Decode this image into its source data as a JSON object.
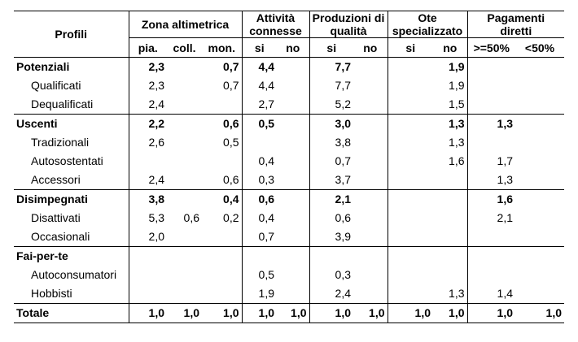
{
  "headers": {
    "profili": "Profili",
    "zona": "Zona altimetrica",
    "attivita": "Attività connesse",
    "produzioni": "Produzioni di qualità",
    "ote": "Ote specializzato",
    "pagamenti": "Pagamenti diretti",
    "sub": [
      "pia.",
      "coll.",
      "mon.",
      "si",
      "no",
      "si",
      "no",
      "si",
      "no",
      ">=50%",
      "<50%"
    ]
  },
  "rows": [
    {
      "label": "Potenziali",
      "cells": [
        "2,3",
        "",
        "0,7",
        "4,4",
        "",
        "7,7",
        "",
        "",
        "1,9",
        "",
        ""
      ]
    },
    {
      "label": "Qualificati",
      "cells": [
        "2,3",
        "",
        "0,7",
        "4,4",
        "",
        "7,7",
        "",
        "",
        "1,9",
        "",
        ""
      ]
    },
    {
      "label": "Dequalificati",
      "cells": [
        "2,4",
        "",
        "",
        "2,7",
        "",
        "5,2",
        "",
        "",
        "1,5",
        "",
        ""
      ]
    },
    {
      "label": "Uscenti",
      "cells": [
        "2,2",
        "",
        "0,6",
        "0,5",
        "",
        "3,0",
        "",
        "",
        "1,3",
        "1,3",
        ""
      ]
    },
    {
      "label": "Tradizionali",
      "cells": [
        "2,6",
        "",
        "0,5",
        "",
        "",
        "3,8",
        "",
        "",
        "1,3",
        "",
        ""
      ]
    },
    {
      "label": "Autosostentati",
      "cells": [
        "",
        "",
        "",
        "0,4",
        "",
        "0,7",
        "",
        "",
        "1,6",
        "1,7",
        ""
      ]
    },
    {
      "label": "Accessori",
      "cells": [
        "2,4",
        "",
        "0,6",
        "0,3",
        "",
        "3,7",
        "",
        "",
        "",
        "1,3",
        ""
      ]
    },
    {
      "label": "Disimpegnati",
      "cells": [
        "3,8",
        "",
        "0,4",
        "0,6",
        "",
        "2,1",
        "",
        "",
        "",
        "1,6",
        ""
      ]
    },
    {
      "label": "Disattivati",
      "cells": [
        "5,3",
        "0,6",
        "0,2",
        "0,4",
        "",
        "0,6",
        "",
        "",
        "",
        "2,1",
        ""
      ]
    },
    {
      "label": "Occasionali",
      "cells": [
        "2,0",
        "",
        "",
        "0,7",
        "",
        "3,9",
        "",
        "",
        "",
        "",
        ""
      ]
    },
    {
      "label": "Fai-per-te",
      "cells": [
        "",
        "",
        "",
        "",
        "",
        "",
        "",
        "",
        "",
        "",
        ""
      ]
    },
    {
      "label": "Autoconsumatori",
      "cells": [
        "",
        "",
        "",
        "0,5",
        "",
        "0,3",
        "",
        "",
        "",
        "",
        ""
      ]
    },
    {
      "label": "Hobbisti",
      "cells": [
        "",
        "",
        "",
        "1,9",
        "",
        "2,4",
        "",
        "",
        "1,3",
        "1,4",
        ""
      ]
    },
    {
      "label": "Totale",
      "cells": [
        "1,0",
        "1,0",
        "1,0",
        "1,0",
        "1,0",
        "1,0",
        "1,0",
        "1,0",
        "1,0",
        "1,0",
        "1,0"
      ]
    }
  ]
}
